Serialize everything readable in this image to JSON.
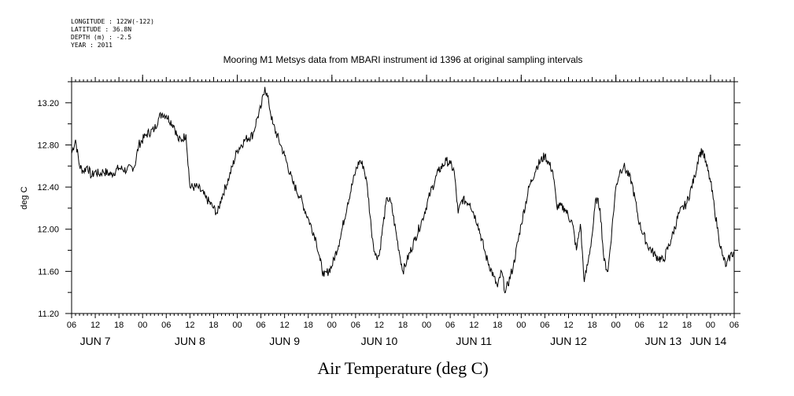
{
  "meta": {
    "longitude": "LONGITUDE : 122W(-122)",
    "latitude": "LATITUDE : 36.8N",
    "depth": "DEPTH (m) : -2.5",
    "year": "YEAR : 2011"
  },
  "chart_data": {
    "type": "line",
    "title": "Mooring M1 Metsys data from MBARI instrument id 1396 at original sampling intervals",
    "xlabel": "Air Temperature (deg C)",
    "ylabel": "deg C",
    "ylim": [
      11.2,
      13.4
    ],
    "y_ticks": [
      "11.20",
      "11.60",
      "12.00",
      "12.40",
      "12.80",
      "13.20"
    ],
    "y_tick_values": [
      11.2,
      11.6,
      12.0,
      12.4,
      12.8,
      13.2
    ],
    "x_range_hours": [
      0,
      168
    ],
    "x_range_label": "Jun 7 2011 06:00 to Jun 14 2011 06:00",
    "hour_tick_labels": [
      "06",
      "12",
      "18",
      "00",
      "06",
      "12",
      "18",
      "00",
      "06",
      "12",
      "18",
      "00",
      "06",
      "12",
      "18",
      "00",
      "06",
      "12",
      "18",
      "00",
      "06",
      "12",
      "18",
      "00",
      "06",
      "12",
      "18",
      "00",
      "06"
    ],
    "day_labels": [
      {
        "label": "JUN  7",
        "date": "2011-06-07 12:00"
      },
      {
        "label": "JUN  8",
        "date": "2011-06-08 12:00"
      },
      {
        "label": "JUN  9",
        "date": "2011-06-09 12:00"
      },
      {
        "label": "JUN 10",
        "date": "2011-06-10 12:00"
      },
      {
        "label": "JUN 11",
        "date": "2011-06-11 12:00"
      },
      {
        "label": "JUN 12",
        "date": "2011-06-12 12:00"
      },
      {
        "label": "JUN 13",
        "date": "2011-06-13 12:00"
      },
      {
        "label": "JUN 14",
        "date": "2011-06-14 06:00"
      }
    ],
    "series": [
      {
        "color": "#000000",
        "points": [
          [
            0,
            12.72
          ],
          [
            1,
            12.85
          ],
          [
            2,
            12.6
          ],
          [
            3,
            12.55
          ],
          [
            4,
            12.6
          ],
          [
            5,
            12.5
          ],
          [
            6,
            12.55
          ],
          [
            7,
            12.52
          ],
          [
            8,
            12.55
          ],
          [
            10,
            12.52
          ],
          [
            12,
            12.58
          ],
          [
            14,
            12.56
          ],
          [
            16,
            12.6
          ],
          [
            17,
            12.8
          ],
          [
            19,
            12.9
          ],
          [
            21,
            12.95
          ],
          [
            22,
            13.05
          ],
          [
            23,
            13.1
          ],
          [
            24,
            13.08
          ],
          [
            26,
            12.98
          ],
          [
            27,
            12.85
          ],
          [
            28,
            12.85
          ],
          [
            29,
            12.9
          ],
          [
            30,
            12.4
          ],
          [
            32,
            12.4
          ],
          [
            34,
            12.3
          ],
          [
            36,
            12.2
          ],
          [
            37,
            12.15
          ],
          [
            38,
            12.3
          ],
          [
            40,
            12.5
          ],
          [
            42,
            12.75
          ],
          [
            44,
            12.85
          ],
          [
            46,
            12.9
          ],
          [
            47,
            13.05
          ],
          [
            48,
            13.15
          ],
          [
            49,
            13.35
          ],
          [
            50,
            13.2
          ],
          [
            51,
            13.0
          ],
          [
            53,
            12.8
          ],
          [
            54,
            12.7
          ],
          [
            56,
            12.45
          ],
          [
            58,
            12.3
          ],
          [
            60,
            12.1
          ],
          [
            62,
            11.9
          ],
          [
            63,
            11.7
          ],
          [
            64,
            11.55
          ],
          [
            66,
            11.65
          ],
          [
            68,
            11.9
          ],
          [
            70,
            12.25
          ],
          [
            72,
            12.55
          ],
          [
            73,
            12.65
          ],
          [
            74,
            12.6
          ],
          [
            75,
            12.4
          ],
          [
            76,
            12.0
          ],
          [
            77,
            11.75
          ],
          [
            78,
            11.75
          ],
          [
            79,
            12.05
          ],
          [
            80,
            12.3
          ],
          [
            81,
            12.25
          ],
          [
            83,
            11.8
          ],
          [
            84,
            11.6
          ],
          [
            85,
            11.7
          ],
          [
            87,
            11.9
          ],
          [
            89,
            12.1
          ],
          [
            91,
            12.35
          ],
          [
            93,
            12.55
          ],
          [
            95,
            12.65
          ],
          [
            96,
            12.62
          ],
          [
            97,
            12.55
          ],
          [
            98,
            12.15
          ],
          [
            99,
            12.28
          ],
          [
            101,
            12.25
          ],
          [
            103,
            12.05
          ],
          [
            105,
            11.75
          ],
          [
            107,
            11.55
          ],
          [
            108,
            11.45
          ],
          [
            109,
            11.6
          ],
          [
            110,
            11.4
          ],
          [
            112,
            11.65
          ],
          [
            114,
            12.05
          ],
          [
            116,
            12.4
          ],
          [
            118,
            12.6
          ],
          [
            120,
            12.7
          ],
          [
            122,
            12.55
          ],
          [
            123,
            12.22
          ],
          [
            125,
            12.2
          ],
          [
            127,
            12.05
          ],
          [
            128,
            11.8
          ],
          [
            129,
            12.05
          ],
          [
            130,
            11.5
          ],
          [
            131,
            11.7
          ],
          [
            132,
            11.95
          ],
          [
            133,
            12.3
          ],
          [
            134,
            12.2
          ],
          [
            135,
            11.7
          ],
          [
            136,
            11.6
          ],
          [
            137,
            12.0
          ],
          [
            138,
            12.4
          ],
          [
            139,
            12.55
          ],
          [
            140,
            12.6
          ],
          [
            142,
            12.45
          ],
          [
            144,
            12.05
          ],
          [
            146,
            11.85
          ],
          [
            148,
            11.75
          ],
          [
            150,
            11.7
          ],
          [
            152,
            11.9
          ],
          [
            154,
            12.15
          ],
          [
            156,
            12.25
          ],
          [
            158,
            12.5
          ],
          [
            159,
            12.7
          ],
          [
            160,
            12.75
          ],
          [
            161,
            12.6
          ],
          [
            162,
            12.45
          ],
          [
            163,
            12.2
          ],
          [
            164,
            11.95
          ],
          [
            165,
            11.75
          ],
          [
            166,
            11.65
          ],
          [
            167,
            11.75
          ],
          [
            168,
            11.78
          ]
        ]
      }
    ]
  }
}
